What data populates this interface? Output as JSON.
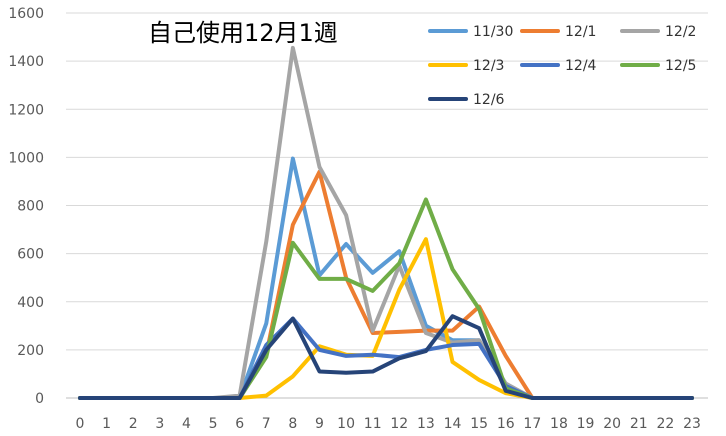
{
  "chart_data": {
    "type": "line",
    "title": "自己使用12月1週",
    "xlabel": "",
    "ylabel": "",
    "x": [
      0,
      1,
      2,
      3,
      4,
      5,
      6,
      7,
      8,
      9,
      10,
      11,
      12,
      13,
      14,
      15,
      16,
      17,
      18,
      19,
      20,
      21,
      22,
      23
    ],
    "ylim": [
      0,
      1600
    ],
    "yticks": [
      0,
      200,
      400,
      600,
      800,
      1000,
      1200,
      1400,
      1600
    ],
    "grid": true,
    "legend_position": "top-right",
    "series": [
      {
        "name": "11/30",
        "color": "#5B9BD5",
        "values": [
          0,
          0,
          0,
          0,
          0,
          0,
          0,
          310,
          995,
          510,
          640,
          520,
          610,
          300,
          240,
          240,
          50,
          0,
          0,
          0,
          0,
          0,
          0,
          0
        ]
      },
      {
        "name": "12/1",
        "color": "#ED7D31",
        "values": [
          0,
          0,
          0,
          0,
          0,
          0,
          0,
          180,
          720,
          940,
          500,
          270,
          275,
          280,
          280,
          380,
          175,
          0,
          0,
          0,
          0,
          0,
          0,
          0
        ]
      },
      {
        "name": "12/2",
        "color": "#A5A5A5",
        "values": [
          0,
          0,
          0,
          0,
          0,
          0,
          10,
          650,
          1455,
          960,
          760,
          280,
          550,
          270,
          230,
          240,
          60,
          0,
          0,
          0,
          0,
          0,
          0,
          0
        ]
      },
      {
        "name": "12/3",
        "color": "#FFC000",
        "values": [
          0,
          0,
          0,
          0,
          0,
          0,
          0,
          10,
          90,
          215,
          180,
          175,
          450,
          660,
          150,
          75,
          20,
          0,
          0,
          0,
          0,
          0,
          0,
          0
        ]
      },
      {
        "name": "12/4",
        "color": "#4472C4",
        "values": [
          0,
          0,
          0,
          0,
          0,
          0,
          0,
          220,
          330,
          200,
          175,
          180,
          170,
          200,
          220,
          225,
          50,
          0,
          0,
          0,
          0,
          0,
          0,
          0
        ]
      },
      {
        "name": "12/5",
        "color": "#70AD47",
        "values": [
          0,
          0,
          0,
          0,
          0,
          0,
          0,
          170,
          645,
          495,
          495,
          445,
          560,
          825,
          535,
          370,
          40,
          0,
          0,
          0,
          0,
          0,
          0,
          0
        ]
      },
      {
        "name": "12/6",
        "color": "#264478",
        "values": [
          0,
          0,
          0,
          0,
          0,
          0,
          0,
          200,
          330,
          110,
          105,
          110,
          165,
          195,
          340,
          290,
          30,
          0,
          0,
          0,
          0,
          0,
          0,
          0
        ]
      }
    ]
  }
}
